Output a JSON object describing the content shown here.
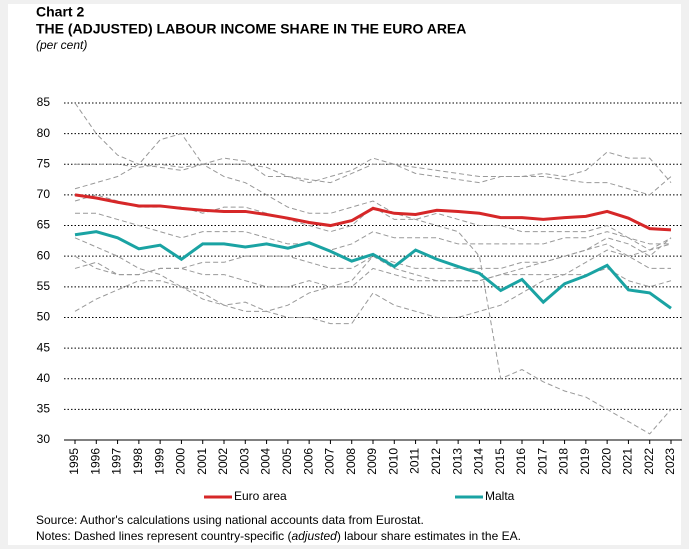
{
  "chart_data": {
    "type": "line",
    "label": "Chart 2",
    "title": "THE (ADJUSTED) LABOUR INCOME SHARE IN THE EURO AREA",
    "subtitle": "(per cent)",
    "x": [
      1995,
      1996,
      1997,
      1998,
      1999,
      2000,
      2001,
      2002,
      2003,
      2004,
      2005,
      2006,
      2007,
      2008,
      2009,
      2010,
      2011,
      2012,
      2013,
      2014,
      2015,
      2016,
      2017,
      2018,
      2019,
      2020,
      2021,
      2022,
      2023
    ],
    "ylim": [
      30,
      85
    ],
    "yticks": [
      30,
      35,
      40,
      45,
      50,
      55,
      60,
      65,
      70,
      75,
      80,
      85
    ],
    "grid": true,
    "series": [
      {
        "color": "#999999",
        "dashed": true,
        "values": [
          85,
          80,
          76.5,
          75,
          74.5,
          74,
          75,
          73,
          72,
          70,
          68,
          67,
          67,
          68,
          69,
          67,
          66,
          65,
          64,
          60,
          40,
          41.5,
          39.5,
          38,
          37,
          35,
          33,
          31,
          35
        ]
      },
      {
        "color": "#999999",
        "dashed": true,
        "values": [
          71,
          72,
          73,
          75,
          79,
          80,
          75,
          76,
          75.5,
          73,
          73,
          72,
          73,
          74,
          76,
          75,
          73.5,
          73,
          72.5,
          72,
          73,
          73,
          73.5,
          73,
          74,
          77,
          76,
          76,
          72
        ]
      },
      {
        "color": "#999999",
        "dashed": true,
        "values": [
          75,
          75,
          75,
          74.5,
          75,
          74.5,
          75,
          75,
          75,
          74.5,
          73,
          72.5,
          72,
          73.5,
          75,
          75,
          74.5,
          74,
          73.5,
          73,
          73,
          73,
          73,
          72.5,
          72,
          72,
          71,
          70,
          73
        ]
      },
      {
        "color": "#999999",
        "dashed": true,
        "values": [
          69,
          70,
          69,
          68,
          68,
          68,
          67,
          68,
          68,
          67,
          66,
          65,
          64,
          65,
          68,
          66,
          66,
          67,
          66,
          65,
          65,
          64,
          64,
          64,
          64,
          65,
          63,
          62,
          62
        ]
      },
      {
        "color": "#999999",
        "dashed": true,
        "values": [
          58,
          59,
          57,
          57,
          58,
          58,
          57,
          57,
          56,
          55,
          55,
          56,
          55,
          55,
          58,
          57,
          56,
          56,
          56,
          56,
          57,
          57,
          57,
          57,
          57,
          58,
          56,
          55,
          56
        ]
      },
      {
        "color": "#999999",
        "dashed": true,
        "values": [
          63,
          61.5,
          60,
          58,
          57,
          55,
          54,
          52,
          52.5,
          51,
          50,
          50,
          49,
          49,
          54,
          52,
          51,
          50,
          50,
          51,
          52,
          54,
          56,
          57,
          59,
          61,
          60,
          61,
          63
        ]
      },
      {
        "color": "#999999",
        "dashed": true,
        "values": [
          51,
          53,
          54.5,
          56,
          56,
          55,
          53,
          52,
          51,
          51,
          52,
          54,
          55,
          56,
          60,
          58,
          57,
          56,
          56,
          56,
          57,
          58,
          59,
          60,
          61,
          63,
          62,
          60,
          63
        ]
      },
      {
        "color": "#999999",
        "dashed": true,
        "values": [
          67,
          67,
          66,
          65,
          64,
          63,
          64,
          64,
          64,
          63,
          62,
          62,
          61,
          62,
          64,
          63,
          63,
          63,
          62,
          62,
          62,
          62,
          62,
          63,
          63,
          64,
          63,
          61,
          62
        ]
      },
      {
        "color": "#999999",
        "dashed": true,
        "values": [
          60,
          58,
          57,
          57,
          58,
          58,
          59,
          59,
          60,
          60,
          60,
          59,
          58,
          58,
          60,
          59,
          58,
          58,
          58,
          58,
          58,
          59,
          59,
          60,
          61,
          62,
          60,
          58,
          58
        ]
      },
      {
        "name": "Euro area",
        "color": "#d62728",
        "values": [
          70,
          69.5,
          68.8,
          68.2,
          68.2,
          67.8,
          67.5,
          67.3,
          67.3,
          66.8,
          66.2,
          65.5,
          65,
          65.8,
          67.8,
          67,
          66.8,
          67.5,
          67.3,
          67,
          66.3,
          66.3,
          66,
          66.3,
          66.5,
          67.3,
          66.2,
          64.5,
          64.3
        ]
      },
      {
        "name": "Malta",
        "color": "#1aa3a3",
        "values": [
          63.5,
          64,
          63,
          61.2,
          61.8,
          59.5,
          62,
          62,
          61.5,
          62,
          61.3,
          62.2,
          60.8,
          59.2,
          60.3,
          58.3,
          61,
          59.5,
          58.3,
          57.2,
          54.4,
          56.2,
          52.5,
          55.5,
          56.8,
          58.5,
          54.5,
          54,
          51.5
        ]
      }
    ],
    "source": "Source: Author's calculations using national accounts data from Eurostat.",
    "notes": [
      "Notes: Dashed lines represent country-specific (",
      "adjusted",
      ") labour share estimates in the EA."
    ]
  }
}
